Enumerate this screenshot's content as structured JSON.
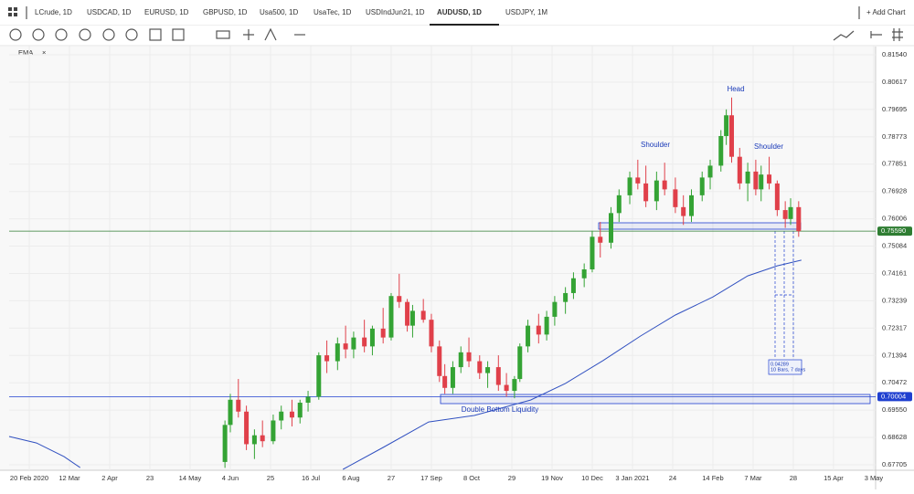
{
  "tabs": [
    "LCrude, 1D",
    "USDCAD, 1D",
    "EURUSD, 1D",
    "GBPUSD, 1D",
    "Usa500, 1D",
    "UsaTec, 1D",
    "USDIndJun21, 1D",
    "AUDUSD, 1D",
    "USDJPY, 1M"
  ],
  "active_tab": 7,
  "add_chart": "+ Add Chart",
  "chart_data": {
    "type": "candlestick",
    "up_color": "#34a334",
    "down_color": "#e0404a",
    "x": [
      73,
      75,
      78,
      81,
      84,
      87,
      91,
      94,
      98,
      101,
      104,
      108,
      111,
      115,
      118,
      121,
      125,
      128,
      132,
      135,
      138,
      141,
      143,
      147,
      150,
      153,
      155,
      158,
      161,
      164,
      168,
      171,
      175,
      178,
      181,
      183,
      186,
      190,
      193,
      196,
      200,
      203,
      207,
      210,
      213,
      217,
      220,
      224,
      227,
      230,
      234,
      237,
      241,
      244,
      247,
      251,
      254,
      258,
      260,
      262,
      265,
      268,
      271,
      273,
      276,
      279,
      282,
      284,
      287
    ],
    "open": [
      0.678,
      0.6905,
      0.699,
      0.695,
      0.684,
      0.687,
      0.685,
      0.692,
      0.695,
      0.693,
      0.698,
      0.7,
      0.714,
      0.712,
      0.718,
      0.716,
      0.72,
      0.717,
      0.723,
      0.72,
      0.734,
      0.732,
      0.724,
      0.729,
      0.726,
      0.717,
      0.707,
      0.703,
      0.71,
      0.715,
      0.712,
      0.708,
      0.71,
      0.704,
      0.702,
      0.706,
      0.717,
      0.724,
      0.721,
      0.727,
      0.732,
      0.735,
      0.74,
      0.743,
      0.754,
      0.752,
      0.762,
      0.768,
      0.774,
      0.772,
      0.766,
      0.773,
      0.77,
      0.764,
      0.761,
      0.768,
      0.774,
      0.778,
      0.788,
      0.795,
      0.781,
      0.772,
      0.776,
      0.77,
      0.775,
      0.772,
      0.763,
      0.76,
      0.764
    ],
    "high": [
      0.692,
      0.701,
      0.706,
      0.697,
      0.689,
      0.692,
      0.694,
      0.697,
      0.699,
      0.699,
      0.702,
      0.715,
      0.719,
      0.72,
      0.724,
      0.722,
      0.726,
      0.724,
      0.73,
      0.735,
      0.7415,
      0.733,
      0.731,
      0.733,
      0.728,
      0.719,
      0.711,
      0.712,
      0.717,
      0.72,
      0.714,
      0.712,
      0.714,
      0.708,
      0.707,
      0.718,
      0.726,
      0.728,
      0.729,
      0.734,
      0.737,
      0.742,
      0.745,
      0.756,
      0.759,
      0.764,
      0.77,
      0.776,
      0.78,
      0.778,
      0.776,
      0.779,
      0.774,
      0.768,
      0.77,
      0.776,
      0.78,
      0.79,
      0.797,
      0.801,
      0.784,
      0.779,
      0.78,
      0.778,
      0.781,
      0.773,
      0.766,
      0.767,
      0.766
    ],
    "low": [
      0.676,
      0.688,
      0.693,
      0.682,
      0.679,
      0.683,
      0.684,
      0.689,
      0.69,
      0.691,
      0.695,
      0.699,
      0.708,
      0.709,
      0.713,
      0.713,
      0.715,
      0.714,
      0.718,
      0.719,
      0.73,
      0.722,
      0.72,
      0.725,
      0.715,
      0.705,
      0.701,
      0.701,
      0.708,
      0.71,
      0.706,
      0.703,
      0.702,
      0.7,
      0.6995,
      0.705,
      0.715,
      0.718,
      0.719,
      0.724,
      0.728,
      0.733,
      0.737,
      0.742,
      0.747,
      0.75,
      0.759,
      0.765,
      0.77,
      0.764,
      0.763,
      0.768,
      0.762,
      0.758,
      0.759,
      0.766,
      0.77,
      0.776,
      0.785,
      0.779,
      0.77,
      0.766,
      0.768,
      0.766,
      0.77,
      0.761,
      0.757,
      0.758,
      0.754
    ],
    "close": [
      0.6905,
      0.699,
      0.695,
      0.684,
      0.687,
      0.685,
      0.692,
      0.695,
      0.693,
      0.698,
      0.7,
      0.714,
      0.712,
      0.718,
      0.716,
      0.72,
      0.717,
      0.723,
      0.72,
      0.734,
      0.732,
      0.724,
      0.729,
      0.726,
      0.717,
      0.707,
      0.703,
      0.71,
      0.715,
      0.712,
      0.708,
      0.71,
      0.704,
      0.702,
      0.706,
      0.717,
      0.724,
      0.721,
      0.727,
      0.732,
      0.735,
      0.74,
      0.743,
      0.754,
      0.752,
      0.762,
      0.768,
      0.774,
      0.772,
      0.766,
      0.773,
      0.77,
      0.764,
      0.761,
      0.768,
      0.774,
      0.778,
      0.788,
      0.795,
      0.781,
      0.772,
      0.776,
      0.77,
      0.775,
      0.772,
      0.763,
      0.76,
      0.764,
      0.7559
    ],
    "overlays": [
      {
        "name": "EMA",
        "color": "#3050c0",
        "x": [
          -7.5,
          2.7,
          13,
          19,
          null,
          117,
          132,
          149,
          166,
          187,
          200,
          214,
          228,
          241,
          255,
          268,
          279,
          288
        ],
        "values": [
          0.6866,
          0.6844,
          0.6798,
          0.6761,
          null,
          0.6755,
          0.6829,
          0.6915,
          0.6937,
          0.6989,
          0.7045,
          0.7122,
          0.7205,
          0.7276,
          0.7337,
          0.7408,
          0.7442,
          0.7461
        ]
      }
    ],
    "levels": [
      {
        "value": 0.7559,
        "label": "0.75590",
        "color": "#2e7d32"
      },
      {
        "value": 0.70004,
        "label": "0.70004",
        "color": "#2040d0"
      }
    ],
    "annotations": [
      "Head",
      "Shoulder",
      "Shoulder",
      "Double Bottom Liquidity",
      "0.04289",
      "10 Bars,  7 days"
    ],
    "ylim": [
      0.6752,
      0.8185
    ],
    "yticks": [
      {
        "value": 0.8154,
        "label": "0.81540"
      },
      0.80617,
      0.79695,
      0.78773,
      0.77851,
      0.76928,
      0.76006,
      0.75084,
      0.74161,
      0.73239,
      0.72317,
      0.71394,
      0.70472,
      {
        "value": 0.6955,
        "label": "0.69550"
      },
      0.68628,
      0.67705
    ],
    "xlim": [
      -7.5,
      315.7
    ],
    "xticks": [
      {
        "value": 0,
        "label": "20 Feb 2020"
      },
      {
        "value": 15,
        "label": "12 Mar"
      },
      {
        "value": 30,
        "label": "2 Apr"
      },
      {
        "value": 45,
        "label": "23"
      },
      {
        "value": 60,
        "label": "14 May"
      },
      {
        "value": 75,
        "label": "4 Jun"
      },
      {
        "value": 90,
        "label": "25"
      },
      {
        "value": 105,
        "label": "16 Jul"
      },
      {
        "value": 120,
        "label": "6 Aug"
      },
      {
        "value": 135,
        "label": "27"
      },
      {
        "value": 150,
        "label": "17 Sep"
      },
      {
        "value": 165,
        "label": "8 Oct"
      },
      {
        "value": 180,
        "label": "29"
      },
      {
        "value": 195,
        "label": "19 Nov"
      },
      {
        "value": 210,
        "label": "10 Dec"
      },
      {
        "value": 225,
        "label": "3 Jan 2021"
      },
      {
        "value": 240,
        "label": "24"
      },
      {
        "value": 255,
        "label": "14 Feb"
      },
      {
        "value": 270,
        "label": "7 Mar"
      },
      {
        "value": 285,
        "label": "28"
      },
      {
        "value": 300,
        "label": "15 Apr"
      },
      {
        "value": 315,
        "label": "3 May"
      }
    ],
    "grid": true
  }
}
